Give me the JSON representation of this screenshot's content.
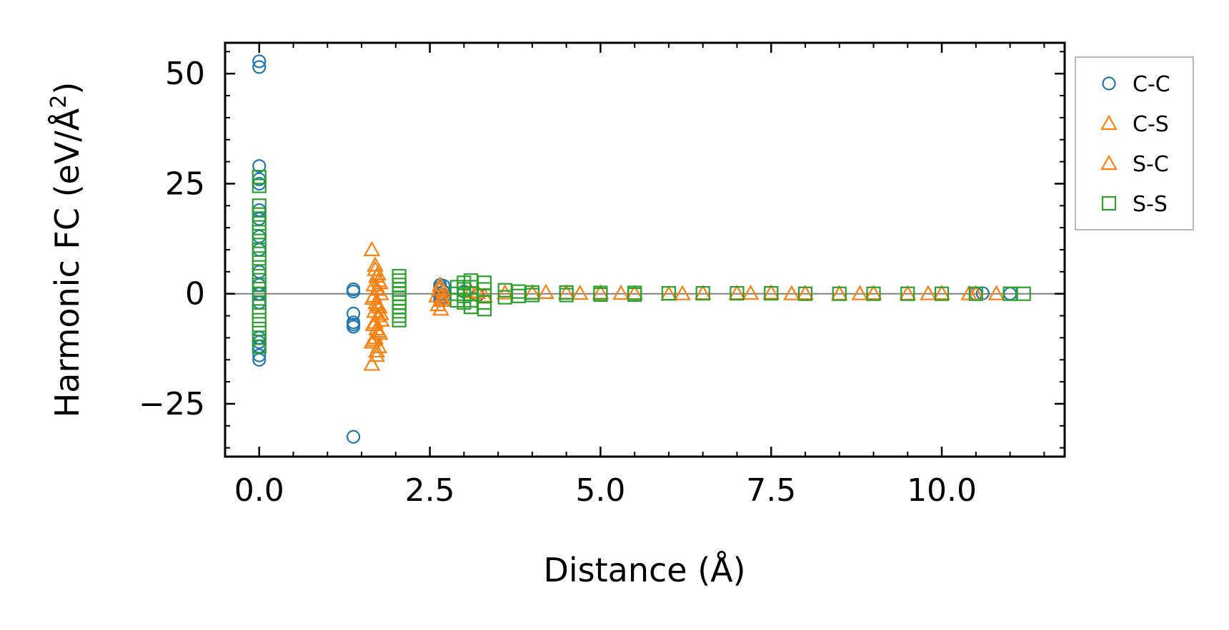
{
  "chart_data": {
    "type": "scatter",
    "xlabel": "Distance (Å)",
    "ylabel_main": "Harmonic FC (eV/Å",
    "ylabel_sup": "2",
    "ylabel_close": ")",
    "xlim": [
      -0.5,
      11.8
    ],
    "ylim": [
      -37,
      57
    ],
    "x_ticks": [
      0.0,
      2.5,
      5.0,
      7.5,
      10.0
    ],
    "x_tick_labels": [
      "0.0",
      "2.5",
      "5.0",
      "7.5",
      "10.0"
    ],
    "y_ticks": [
      -25,
      0,
      25,
      50
    ],
    "y_tick_labels": [
      "−25",
      "0",
      "25",
      "50"
    ],
    "zero_line": true,
    "grid": false,
    "legend_position": "outside-right",
    "colors": {
      "C-C": "#1f77b4",
      "C-S": "#ff7f0e",
      "S-C": "#ff7f0e",
      "S-S": "#2ca02c",
      "zero_line": "#808080"
    },
    "series": [
      {
        "name": "C-C",
        "marker": "circle",
        "points": [
          [
            0.0,
            52.8
          ],
          [
            0.0,
            51.5
          ],
          [
            0.0,
            29.0
          ],
          [
            0.0,
            26.0
          ],
          [
            0.0,
            25.0
          ],
          [
            0.0,
            19.0
          ],
          [
            0.0,
            17.0
          ],
          [
            0.0,
            13.0
          ],
          [
            0.0,
            10.0
          ],
          [
            0.0,
            5.0
          ],
          [
            0.0,
            2.0
          ],
          [
            0.0,
            0.0
          ],
          [
            0.0,
            -2.0
          ],
          [
            0.0,
            -10.0
          ],
          [
            0.0,
            -11.0
          ],
          [
            0.0,
            -12.0
          ],
          [
            0.0,
            -14.0
          ],
          [
            0.0,
            -15.0
          ],
          [
            1.38,
            1.0
          ],
          [
            1.38,
            0.5
          ],
          [
            1.38,
            -4.5
          ],
          [
            1.38,
            -6.5
          ],
          [
            1.38,
            -7.0
          ],
          [
            1.38,
            -7.5
          ],
          [
            1.38,
            -32.5
          ],
          [
            2.65,
            2.0
          ],
          [
            2.65,
            1.5
          ],
          [
            2.65,
            1.0
          ],
          [
            2.65,
            0.0
          ],
          [
            2.65,
            -0.5
          ],
          [
            2.65,
            -1.5
          ],
          [
            2.7,
            1.8
          ],
          [
            2.7,
            0.5
          ],
          [
            2.7,
            -0.8
          ],
          [
            3.0,
            0.5
          ],
          [
            3.2,
            -0.3
          ],
          [
            10.5,
            0.0
          ],
          [
            10.6,
            0.1
          ],
          [
            11.0,
            0.0
          ]
        ]
      },
      {
        "name": "C-S",
        "marker": "triangle",
        "points": [
          [
            1.65,
            10.0
          ],
          [
            1.7,
            5.5
          ],
          [
            1.72,
            4.0
          ],
          [
            1.75,
            3.0
          ],
          [
            1.68,
            2.0
          ],
          [
            1.73,
            1.0
          ],
          [
            1.78,
            0.0
          ],
          [
            1.66,
            -1.0
          ],
          [
            1.71,
            -2.0
          ],
          [
            1.76,
            -3.0
          ],
          [
            1.69,
            -4.0
          ],
          [
            1.74,
            -5.0
          ],
          [
            1.79,
            -6.0
          ],
          [
            1.67,
            -7.0
          ],
          [
            1.72,
            -8.0
          ],
          [
            1.77,
            -9.0
          ],
          [
            1.7,
            -10.0
          ],
          [
            1.65,
            -11.0
          ],
          [
            1.75,
            -12.0
          ],
          [
            1.72,
            -14.0
          ],
          [
            1.65,
            -16.0
          ],
          [
            2.65,
            2.0
          ],
          [
            2.7,
            0.5
          ],
          [
            2.6,
            -0.5
          ],
          [
            2.68,
            -1.5
          ],
          [
            2.62,
            -2.5
          ],
          [
            2.66,
            -3.5
          ],
          [
            3.1,
            0.5
          ],
          [
            3.3,
            -0.5
          ],
          [
            3.6,
            0.2
          ],
          [
            4.2,
            0.3
          ],
          [
            4.5,
            0.2
          ],
          [
            5.0,
            0.2
          ],
          [
            5.5,
            0.1
          ],
          [
            6.0,
            -0.1
          ],
          [
            6.5,
            0.1
          ],
          [
            7.0,
            0.1
          ],
          [
            7.5,
            0.2
          ],
          [
            8.0,
            0.1
          ],
          [
            8.5,
            0.0
          ],
          [
            9.0,
            0.1
          ],
          [
            9.5,
            0.0
          ],
          [
            10.0,
            0.1
          ],
          [
            10.4,
            0.0
          ],
          [
            10.8,
            0.0
          ]
        ]
      },
      {
        "name": "S-C",
        "marker": "triangle",
        "points": [
          [
            1.7,
            6.5
          ],
          [
            1.74,
            4.5
          ],
          [
            1.77,
            2.5
          ],
          [
            1.68,
            -0.5
          ],
          [
            1.73,
            -2.5
          ],
          [
            1.78,
            -4.5
          ],
          [
            1.7,
            -6.5
          ],
          [
            1.75,
            -8.5
          ],
          [
            1.67,
            -10.5
          ],
          [
            1.72,
            -13.0
          ],
          [
            2.64,
            1.0
          ],
          [
            2.69,
            -1.0
          ],
          [
            3.2,
            0.3
          ],
          [
            4.0,
            0.2
          ],
          [
            4.7,
            0.1
          ],
          [
            5.3,
            0.1
          ],
          [
            6.2,
            0.0
          ],
          [
            7.2,
            0.1
          ],
          [
            7.8,
            0.0
          ],
          [
            8.8,
            0.0
          ],
          [
            9.8,
            0.0
          ],
          [
            10.5,
            0.0
          ]
        ]
      },
      {
        "name": "S-S",
        "marker": "square",
        "points": [
          [
            0.0,
            26.5
          ],
          [
            0.0,
            24.5
          ],
          [
            0.0,
            20.0
          ],
          [
            0.0,
            18.0
          ],
          [
            0.0,
            16.0
          ],
          [
            0.0,
            14.0
          ],
          [
            0.0,
            12.0
          ],
          [
            0.0,
            10.0
          ],
          [
            0.0,
            8.0
          ],
          [
            0.0,
            6.0
          ],
          [
            0.0,
            4.0
          ],
          [
            0.0,
            2.0
          ],
          [
            0.0,
            0.0
          ],
          [
            0.0,
            -2.0
          ],
          [
            0.0,
            -4.0
          ],
          [
            0.0,
            -6.0
          ],
          [
            0.0,
            -8.0
          ],
          [
            0.0,
            -10.0
          ],
          [
            0.0,
            -12.0
          ],
          [
            2.05,
            4.0
          ],
          [
            2.05,
            3.0
          ],
          [
            2.05,
            2.0
          ],
          [
            2.05,
            1.0
          ],
          [
            2.05,
            0.0
          ],
          [
            2.05,
            -1.0
          ],
          [
            2.05,
            -2.0
          ],
          [
            2.05,
            -3.0
          ],
          [
            2.05,
            -4.0
          ],
          [
            2.05,
            -5.0
          ],
          [
            2.05,
            -6.0
          ],
          [
            2.9,
            1.5
          ],
          [
            2.9,
            0.0
          ],
          [
            2.9,
            -1.5
          ],
          [
            3.0,
            2.5
          ],
          [
            3.0,
            1.0
          ],
          [
            3.0,
            -0.5
          ],
          [
            3.0,
            -2.0
          ],
          [
            3.1,
            3.0
          ],
          [
            3.1,
            1.5
          ],
          [
            3.1,
            0.0
          ],
          [
            3.1,
            -1.5
          ],
          [
            3.1,
            -3.0
          ],
          [
            3.3,
            2.5
          ],
          [
            3.3,
            1.0
          ],
          [
            3.3,
            -0.5
          ],
          [
            3.3,
            -2.0
          ],
          [
            3.3,
            -3.5
          ],
          [
            3.6,
            0.8
          ],
          [
            3.6,
            -0.8
          ],
          [
            3.8,
            0.5
          ],
          [
            3.8,
            -0.5
          ],
          [
            4.0,
            0.3
          ],
          [
            4.0,
            -0.3
          ],
          [
            4.5,
            0.3
          ],
          [
            4.5,
            -0.3
          ],
          [
            5.0,
            0.2
          ],
          [
            5.0,
            -0.2
          ],
          [
            5.5,
            0.2
          ],
          [
            5.5,
            -0.2
          ],
          [
            6.0,
            0.1
          ],
          [
            6.5,
            0.1
          ],
          [
            7.0,
            0.1
          ],
          [
            7.5,
            0.1
          ],
          [
            8.0,
            0.0
          ],
          [
            8.5,
            0.0
          ],
          [
            9.0,
            0.0
          ],
          [
            9.5,
            0.0
          ],
          [
            10.0,
            0.0
          ],
          [
            10.5,
            0.0
          ],
          [
            11.0,
            0.0
          ],
          [
            11.2,
            0.0
          ]
        ]
      }
    ]
  }
}
